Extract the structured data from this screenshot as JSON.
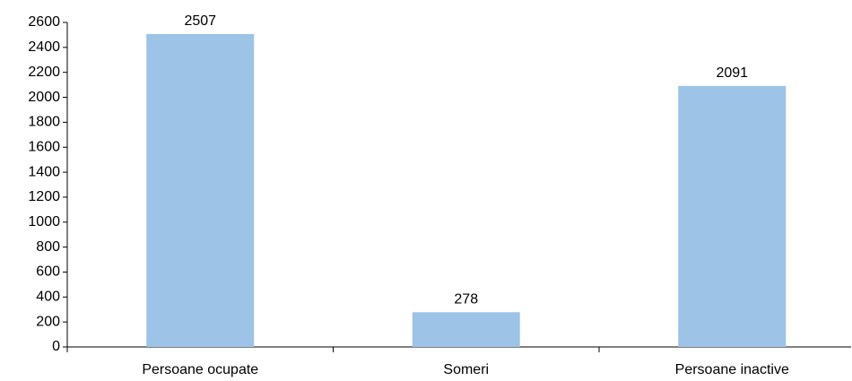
{
  "chart_data": {
    "type": "bar",
    "categories": [
      "Persoane ocupate",
      "Someri",
      "Persoane inactive"
    ],
    "values": [
      2507,
      278,
      2091
    ],
    "color": "#9dc3e6",
    "ylim": [
      0,
      2600
    ],
    "yticks": [
      0,
      200,
      400,
      600,
      800,
      1000,
      1200,
      1400,
      1600,
      1800,
      2000,
      2200,
      2400,
      2600
    ],
    "grid": false
  }
}
